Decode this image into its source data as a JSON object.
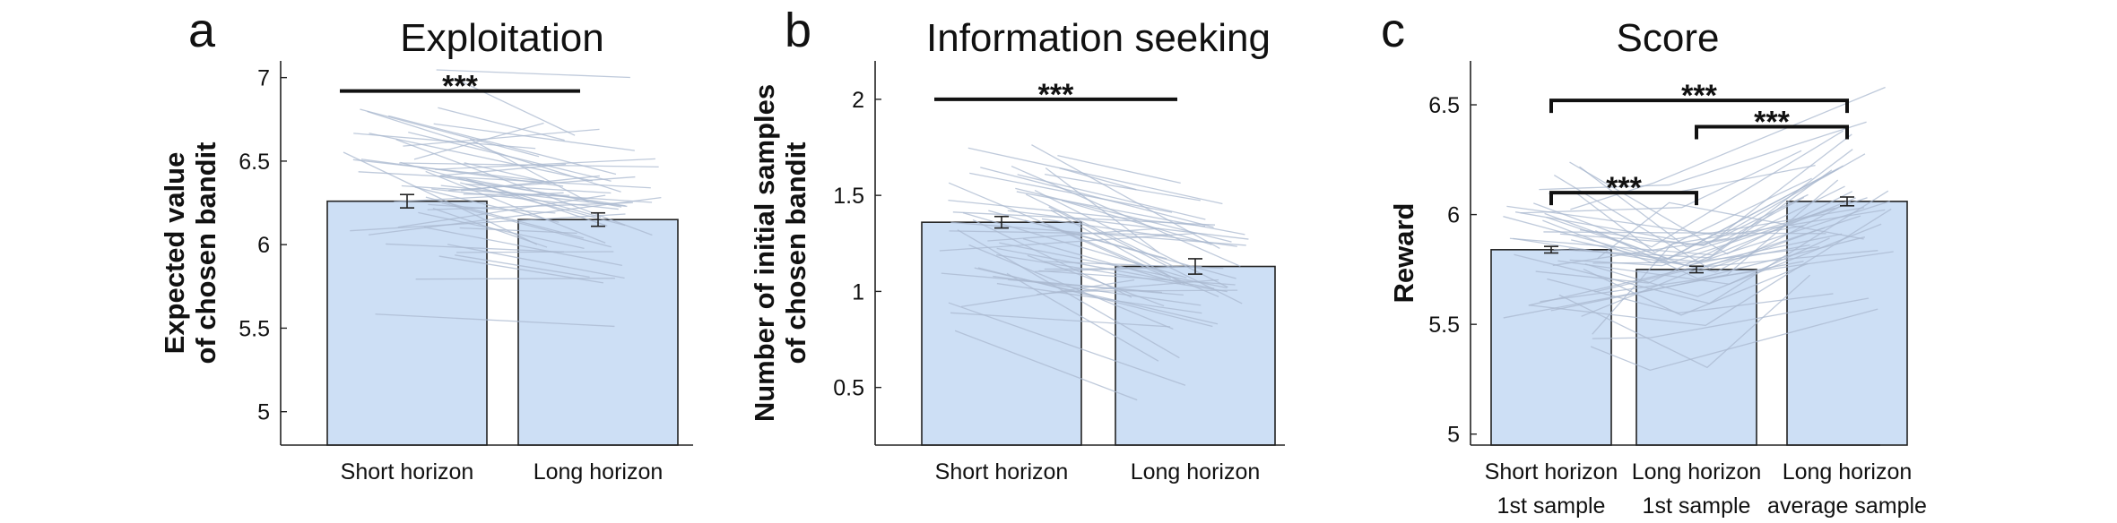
{
  "colors": {
    "bar_fill": "#cddff5",
    "bar_stroke": "#222222",
    "subject_lines": "#a9b8cf",
    "axis": "#222222"
  },
  "chart_data": [
    {
      "type": "bar",
      "panel": "a",
      "title": "Exploitation",
      "ylabel": [
        "Expected value",
        "of chosen bandit"
      ],
      "categories": [
        [
          "Short horizon"
        ],
        [
          "Long horizon"
        ]
      ],
      "values": [
        6.26,
        6.15
      ],
      "errors": [
        0.04,
        0.04
      ],
      "ylim": [
        4.8,
        7.1
      ],
      "yticks": [
        5,
        5.5,
        6,
        6.5,
        7
      ],
      "ytick_labels": [
        "5",
        "5.5",
        "6",
        "6.5",
        "7"
      ],
      "grid": false,
      "subject_lines": true,
      "significance": [
        {
          "from": 0,
          "to": 1,
          "label": "***",
          "y": 6.92
        }
      ]
    },
    {
      "type": "bar",
      "panel": "b",
      "title": "Information seeking",
      "ylabel": [
        "Number of initial samples",
        "of chosen bandit"
      ],
      "categories": [
        [
          "Short horizon"
        ],
        [
          "Long horizon"
        ]
      ],
      "values": [
        1.36,
        1.13
      ],
      "errors": [
        0.03,
        0.04
      ],
      "ylim": [
        0.2,
        2.2
      ],
      "yticks": [
        0.5,
        1,
        1.5,
        2
      ],
      "ytick_labels": [
        "0.5",
        "1",
        "1.5",
        "2"
      ],
      "grid": false,
      "subject_lines": true,
      "significance": [
        {
          "from": 0,
          "to": 1,
          "label": "***",
          "y": 2.0
        }
      ]
    },
    {
      "type": "bar",
      "panel": "c",
      "title": "Score",
      "ylabel": [
        "Reward"
      ],
      "categories": [
        [
          "Short horizon",
          "1st sample"
        ],
        [
          "Long horizon",
          "1st sample"
        ],
        [
          "Long horizon",
          "average sample"
        ]
      ],
      "values": [
        5.84,
        5.75,
        6.06
      ],
      "errors": [
        0.015,
        0.015,
        0.02
      ],
      "ylim": [
        4.95,
        6.7
      ],
      "yticks": [
        5,
        5.5,
        6,
        6.5
      ],
      "ytick_labels": [
        "5",
        "5.5",
        "6",
        "6.5"
      ],
      "grid": false,
      "subject_lines": true,
      "significance": [
        {
          "from": 0,
          "to": 2,
          "label": "***",
          "y": 6.52
        },
        {
          "from": 1,
          "to": 2,
          "label": "***",
          "y": 6.4
        },
        {
          "from": 0,
          "to": 1,
          "label": "***",
          "y": 6.1
        }
      ]
    }
  ]
}
